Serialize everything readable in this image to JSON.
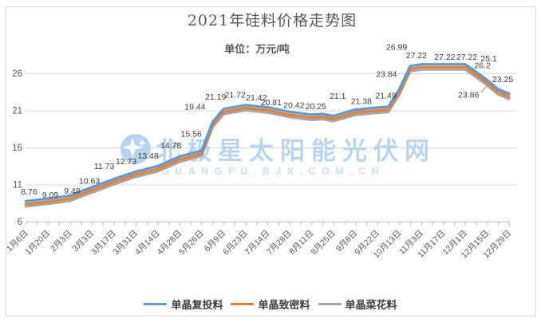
{
  "chart": {
    "title": "2021年硅料价格走势图",
    "subtitle": "单位：万元/吨",
    "watermark": {
      "logo": "star-logo",
      "main": "北极星太阳能光伏网",
      "sub": "GUANGFU.BJX.COM.CN",
      "main_color": "#b3d0ec",
      "sub_color": "#c5ddf2"
    }
  },
  "legend": {
    "items": [
      {
        "label": "单晶复投料",
        "color": "#5B9BD5"
      },
      {
        "label": "单晶致密料",
        "color": "#ED7D31"
      },
      {
        "label": "单晶菜花料",
        "color": "#A5A5A5"
      }
    ]
  },
  "chart_data": {
    "type": "line",
    "title": "2021年硅料价格走势图",
    "unit": "万元/吨",
    "grid": true,
    "legend_position": "bottom",
    "y_ticks": [
      26,
      21,
      16,
      11,
      6
    ],
    "y_axis_range": [
      6,
      26
    ],
    "x_tick_count": 45,
    "categories": [
      "1月6日",
      "1月20日",
      "2月3日",
      "3月3日",
      "3月17日",
      "3月31日",
      "4月14日",
      "4月28日",
      "5月26日",
      "6月9日",
      "6月23日",
      "7月14日",
      "7月28日",
      "8月11日",
      "8月25日",
      "9月8日",
      "9月22日",
      "10月13日",
      "11月3日",
      "11月17日",
      "12月1日",
      "12月15日",
      "12月29日"
    ],
    "category_tick_indices": [
      0,
      2,
      4,
      6,
      8,
      10,
      12,
      14,
      16,
      18,
      20,
      22,
      24,
      26,
      28,
      30,
      32,
      34,
      36,
      38,
      40,
      42,
      44
    ],
    "series": [
      {
        "name": "单晶复投料",
        "color": "#5B9BD5",
        "x": [
          0,
          2,
          4,
          6,
          8,
          10,
          12,
          14,
          16,
          17,
          18,
          20,
          22,
          24,
          26,
          27,
          28,
          30,
          32,
          33,
          34,
          35,
          36,
          38,
          40,
          41,
          42,
          43,
          44
        ],
        "values": [
          8.76,
          9.09,
          9.48,
          10.63,
          11.73,
          12.73,
          13.48,
          14.78,
          15.56,
          19.44,
          21.19,
          21.72,
          21.42,
          20.81,
          20.42,
          20.52,
          20.25,
          21.1,
          21.38,
          21.49,
          23.84,
          26.99,
          27.22,
          27.22,
          27.22,
          26.2,
          25.1,
          23.86,
          23.25
        ],
        "labels": [
          {
            "x": 0,
            "text": "8.76",
            "dx": 4,
            "dy": -12
          },
          {
            "x": 2,
            "text": "9.09",
            "dx": 3,
            "dy": -5
          },
          {
            "x": 4,
            "text": "9.48",
            "dx": 3,
            "dy": -6
          },
          {
            "x": 6,
            "text": "10.63",
            "dx": -3,
            "dy": -8
          },
          {
            "x": 8,
            "text": "11.73",
            "dx": -12,
            "dy": -16
          },
          {
            "x": 10,
            "text": "12.73",
            "dx": -12,
            "dy": -13
          },
          {
            "x": 12,
            "text": "13.48",
            "dx": -12,
            "dy": -13
          },
          {
            "x": 14,
            "text": "14.78",
            "dx": -11,
            "dy": -14
          },
          {
            "x": 16,
            "text": "15.56",
            "dx": -13,
            "dy": -21
          },
          {
            "x": 17,
            "text": "19.44",
            "dx": -22,
            "dy": -19
          },
          {
            "x": 18,
            "text": "21.19",
            "dx": -10,
            "dy": -15
          },
          {
            "x": 20,
            "text": "21.72",
            "dx": -13,
            "dy": -13
          },
          {
            "x": 22,
            "text": "21.42",
            "dx": -14,
            "dy": -12
          },
          {
            "x": 24,
            "text": "20.81",
            "dx": -23,
            "dy": -12
          },
          {
            "x": 26,
            "text": "20.42",
            "dx": -22,
            "dy": -12
          },
          {
            "x": 28,
            "text": "20.25",
            "dx": -22,
            "dy": -12
          },
          {
            "x": 30,
            "text": "21.1",
            "dx": -22,
            "dy": -17
          },
          {
            "x": 32,
            "text": "21.38",
            "dx": -20,
            "dy": -8
          },
          {
            "x": 33,
            "text": "21.49",
            "dx": -3,
            "dy": -14
          },
          {
            "x": 34,
            "text": "23.84",
            "dx": -16,
            "dy": -19
          },
          {
            "x": 35,
            "text": "26.99",
            "dx": -17,
            "dy": -24
          },
          {
            "x": 36,
            "text": "27.22",
            "dx": -6,
            "dy": -11
          },
          {
            "x": 38,
            "text": "27.22",
            "dx": 2,
            "dy": -9
          },
          {
            "x": 40,
            "text": "27.22",
            "dx": 2,
            "dy": -9
          },
          {
            "x": 41,
            "text": "26.2",
            "dx": 8,
            "dy": -8
          },
          {
            "x": 42,
            "text": "25.1",
            "dx": 2,
            "dy": -27
          },
          {
            "x": 43,
            "text": "23.86",
            "dx": -37,
            "dy": 7,
            "leader": [
              603,
              116,
              613,
              105
            ]
          },
          {
            "x": 44,
            "text": "23.25",
            "dx": -8,
            "dy": -18
          }
        ]
      },
      {
        "name": "单晶致密料",
        "color": "#ED7D31",
        "x": [
          0,
          2,
          4,
          6,
          8,
          10,
          12,
          14,
          16,
          17,
          18,
          20,
          22,
          24,
          26,
          27,
          28,
          30,
          32,
          33,
          34,
          35,
          36,
          38,
          40,
          41,
          42,
          43,
          44
        ],
        "values": [
          8.38,
          8.71,
          9.1,
          10.25,
          11.35,
          12.35,
          13.1,
          14.4,
          15.18,
          19.06,
          20.81,
          21.34,
          21.04,
          20.43,
          20.04,
          20.14,
          19.87,
          20.72,
          21.0,
          21.11,
          23.46,
          26.61,
          26.84,
          26.84,
          26.84,
          25.82,
          24.72,
          23.48,
          22.87
        ],
        "labels": []
      },
      {
        "name": "单晶菜花料",
        "color": "#A5A5A5",
        "x": [
          0,
          2,
          4,
          6,
          8,
          10,
          12,
          14,
          16,
          17,
          18,
          20,
          22,
          24,
          26,
          27,
          28,
          30,
          32,
          33,
          34,
          35,
          36,
          38,
          40,
          41,
          42,
          43,
          44
        ],
        "values": [
          8.06,
          8.39,
          8.78,
          9.93,
          11.03,
          12.03,
          12.78,
          14.08,
          14.86,
          18.74,
          20.49,
          21.02,
          20.72,
          20.11,
          19.72,
          19.82,
          19.55,
          20.4,
          20.68,
          20.79,
          23.14,
          26.29,
          26.52,
          26.52,
          26.52,
          25.5,
          24.4,
          23.16,
          22.55
        ],
        "labels": []
      }
    ],
    "colors": {
      "gridline": "#d9d9d9",
      "axis_line": "#bfbfbf",
      "axis_text": "#595959",
      "data_label_text": "#3f3f3f",
      "chart_border": "#d9d9d9"
    }
  }
}
